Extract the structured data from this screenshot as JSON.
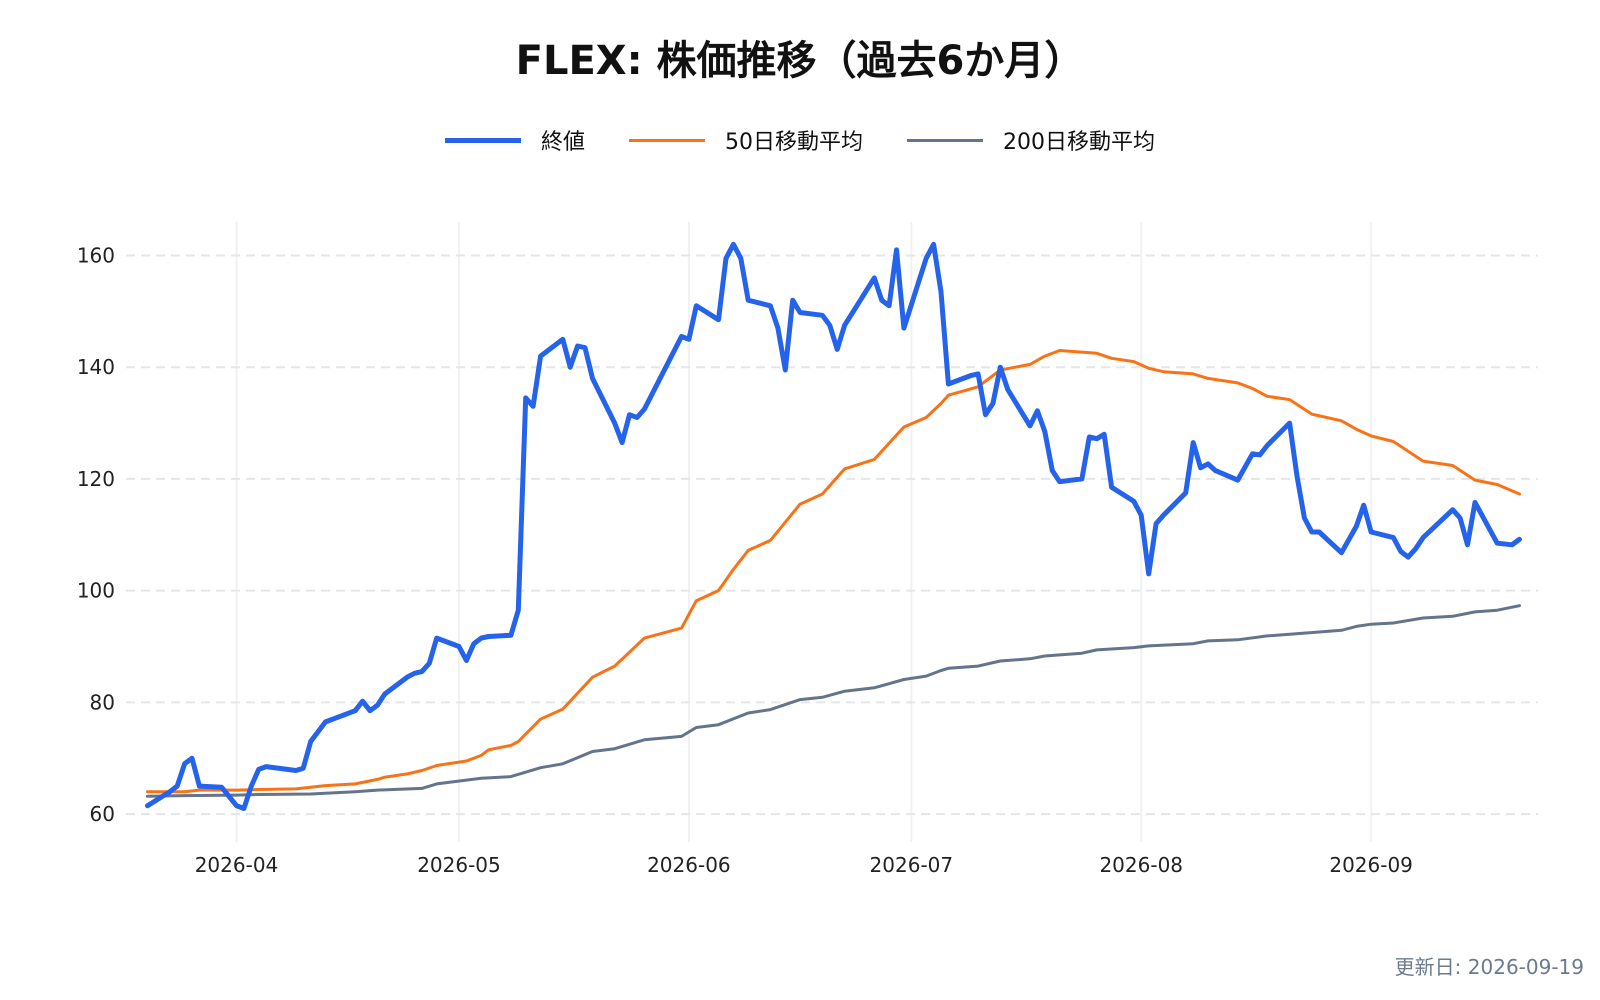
{
  "chart_data": {
    "type": "line",
    "title": "FLEX: 株価推移（過去6か月）",
    "xlabel": "",
    "ylabel": "",
    "ylim": [
      55,
      166
    ],
    "yticks": [
      60,
      80,
      100,
      120,
      140,
      160
    ],
    "xticks": [
      "2026-04",
      "2026-05",
      "2026-06",
      "2026-07",
      "2026-08",
      "2026-09"
    ],
    "x_range": [
      "2026-03-20",
      "2026-09-21"
    ],
    "grid": true,
    "legend_position": "top-center",
    "series": [
      {
        "name": "終値",
        "color": "#2563eb",
        "points": [
          [
            "2026-03-20",
            61.5
          ],
          [
            "2026-03-23",
            64
          ],
          [
            "2026-03-24",
            65
          ],
          [
            "2026-03-25",
            69
          ],
          [
            "2026-03-26",
            70
          ],
          [
            "2026-03-27",
            65
          ],
          [
            "2026-03-30",
            64.8
          ],
          [
            "2026-04-01",
            61.5
          ],
          [
            "2026-04-02",
            61
          ],
          [
            "2026-04-03",
            65
          ],
          [
            "2026-04-04",
            68
          ],
          [
            "2026-04-05",
            68.5
          ],
          [
            "2026-04-09",
            67.8
          ],
          [
            "2026-04-10",
            68.2
          ],
          [
            "2026-04-11",
            73
          ],
          [
            "2026-04-13",
            76.5
          ],
          [
            "2026-04-15",
            77.5
          ],
          [
            "2026-04-17",
            78.5
          ],
          [
            "2026-04-18",
            80.2
          ],
          [
            "2026-04-19",
            78.5
          ],
          [
            "2026-04-20",
            79.5
          ],
          [
            "2026-04-21",
            81.5
          ],
          [
            "2026-04-24",
            84.5
          ],
          [
            "2026-04-25",
            85.2
          ],
          [
            "2026-04-26",
            85.5
          ],
          [
            "2026-04-27",
            87
          ],
          [
            "2026-04-28",
            91.5
          ],
          [
            "2026-05-01",
            90
          ],
          [
            "2026-05-02",
            87.5
          ],
          [
            "2026-05-03",
            90.5
          ],
          [
            "2026-05-04",
            91.5
          ],
          [
            "2026-05-05",
            91.8
          ],
          [
            "2026-05-08",
            92
          ],
          [
            "2026-05-09",
            96.5
          ],
          [
            "2026-05-10",
            134.5
          ],
          [
            "2026-05-11",
            133
          ],
          [
            "2026-05-12",
            142
          ],
          [
            "2026-05-15",
            145
          ],
          [
            "2026-05-16",
            140
          ],
          [
            "2026-05-17",
            143.8
          ],
          [
            "2026-05-18",
            143.5
          ],
          [
            "2026-05-19",
            138
          ],
          [
            "2026-05-22",
            130
          ],
          [
            "2026-05-23",
            126.5
          ],
          [
            "2026-05-24",
            131.5
          ],
          [
            "2026-05-25",
            131
          ],
          [
            "2026-05-26",
            132.5
          ],
          [
            "2026-05-31",
            145.5
          ],
          [
            "2026-06-01",
            145
          ],
          [
            "2026-06-02",
            151
          ],
          [
            "2026-06-05",
            148.5
          ],
          [
            "2026-06-06",
            159.5
          ],
          [
            "2026-06-07",
            162
          ],
          [
            "2026-06-08",
            159.5
          ],
          [
            "2026-06-09",
            152
          ],
          [
            "2026-06-12",
            151
          ],
          [
            "2026-06-13",
            147
          ],
          [
            "2026-06-14",
            139.5
          ],
          [
            "2026-06-15",
            152
          ],
          [
            "2026-06-16",
            149.8
          ],
          [
            "2026-06-19",
            149.3
          ],
          [
            "2026-06-20",
            147.5
          ],
          [
            "2026-06-21",
            143.2
          ],
          [
            "2026-06-22",
            147.5
          ],
          [
            "2026-06-26",
            156
          ],
          [
            "2026-06-27",
            152
          ],
          [
            "2026-06-28",
            151
          ],
          [
            "2026-06-29",
            161
          ],
          [
            "2026-06-30",
            147
          ],
          [
            "2026-07-03",
            159.5
          ],
          [
            "2026-07-04",
            162
          ],
          [
            "2026-07-05",
            153.5
          ],
          [
            "2026-07-06",
            137
          ],
          [
            "2026-07-09",
            138.5
          ],
          [
            "2026-07-10",
            138.8
          ],
          [
            "2026-07-11",
            131.5
          ],
          [
            "2026-07-12",
            133.5
          ],
          [
            "2026-07-13",
            140
          ],
          [
            "2026-07-14",
            136
          ],
          [
            "2026-07-17",
            129.5
          ],
          [
            "2026-07-18",
            132.2
          ],
          [
            "2026-07-19",
            128.5
          ],
          [
            "2026-07-20",
            121.5
          ],
          [
            "2026-07-21",
            119.5
          ],
          [
            "2026-07-24",
            120
          ],
          [
            "2026-07-25",
            127.5
          ],
          [
            "2026-07-26",
            127.2
          ],
          [
            "2026-07-27",
            128
          ],
          [
            "2026-07-28",
            118.5
          ],
          [
            "2026-07-31",
            116
          ],
          [
            "2026-08-01",
            113.5
          ],
          [
            "2026-08-02",
            103
          ],
          [
            "2026-08-03",
            112
          ],
          [
            "2026-08-04",
            113.5
          ],
          [
            "2026-08-07",
            117.5
          ],
          [
            "2026-08-08",
            126.5
          ],
          [
            "2026-08-09",
            122
          ],
          [
            "2026-08-10",
            122.7
          ],
          [
            "2026-08-11",
            121.5
          ],
          [
            "2026-08-14",
            119.8
          ],
          [
            "2026-08-16",
            124.5
          ],
          [
            "2026-08-17",
            124.3
          ],
          [
            "2026-08-18",
            126
          ],
          [
            "2026-08-21",
            130
          ],
          [
            "2026-08-22",
            120.5
          ],
          [
            "2026-08-23",
            113
          ],
          [
            "2026-08-24",
            110.5
          ],
          [
            "2026-08-25",
            110.5
          ],
          [
            "2026-08-28",
            106.8
          ],
          [
            "2026-08-30",
            111.5
          ],
          [
            "2026-08-31",
            115.3
          ],
          [
            "2026-09-01",
            110.5
          ],
          [
            "2026-09-04",
            109.5
          ],
          [
            "2026-09-05",
            107
          ],
          [
            "2026-09-06",
            106
          ],
          [
            "2026-09-07",
            107.5
          ],
          [
            "2026-09-08",
            109.5
          ],
          [
            "2026-09-12",
            114.5
          ],
          [
            "2026-09-13",
            113
          ],
          [
            "2026-09-14",
            108.2
          ],
          [
            "2026-09-15",
            115.8
          ],
          [
            "2026-09-18",
            108.5
          ],
          [
            "2026-09-20",
            108.2
          ],
          [
            "2026-09-21",
            109.2
          ]
        ]
      },
      {
        "name": "50日移動平均",
        "color": "#f97316",
        "points": [
          [
            "2026-03-20",
            64
          ],
          [
            "2026-03-25",
            64
          ],
          [
            "2026-03-27",
            64.3
          ],
          [
            "2026-04-01",
            64.3
          ],
          [
            "2026-04-04",
            64.4
          ],
          [
            "2026-04-09",
            64.5
          ],
          [
            "2026-04-11",
            64.8
          ],
          [
            "2026-04-13",
            65.1
          ],
          [
            "2026-04-17",
            65.4
          ],
          [
            "2026-04-20",
            66.2
          ],
          [
            "2026-04-21",
            66.6
          ],
          [
            "2026-04-24",
            67.2
          ],
          [
            "2026-04-26",
            67.8
          ],
          [
            "2026-04-28",
            68.7
          ],
          [
            "2026-05-02",
            69.5
          ],
          [
            "2026-05-04",
            70.5
          ],
          [
            "2026-05-05",
            71.5
          ],
          [
            "2026-05-08",
            72.3
          ],
          [
            "2026-05-09",
            73
          ],
          [
            "2026-05-12",
            77
          ],
          [
            "2026-05-15",
            78.8
          ],
          [
            "2026-05-19",
            84.5
          ],
          [
            "2026-05-22",
            86.5
          ],
          [
            "2026-05-26",
            91.5
          ],
          [
            "2026-05-31",
            93.3
          ],
          [
            "2026-06-02",
            98.2
          ],
          [
            "2026-06-05",
            100
          ],
          [
            "2026-06-07",
            103.8
          ],
          [
            "2026-06-09",
            107.2
          ],
          [
            "2026-06-12",
            109
          ],
          [
            "2026-06-16",
            115.5
          ],
          [
            "2026-06-19",
            117.3
          ],
          [
            "2026-06-22",
            121.8
          ],
          [
            "2026-06-26",
            123.5
          ],
          [
            "2026-06-30",
            129.3
          ],
          [
            "2026-07-03",
            131
          ],
          [
            "2026-07-05",
            133.5
          ],
          [
            "2026-07-06",
            135
          ],
          [
            "2026-07-10",
            136.5
          ],
          [
            "2026-07-13",
            139.5
          ],
          [
            "2026-07-17",
            140.5
          ],
          [
            "2026-07-19",
            142
          ],
          [
            "2026-07-21",
            143
          ],
          [
            "2026-07-26",
            142.5
          ],
          [
            "2026-07-28",
            141.6
          ],
          [
            "2026-07-31",
            141
          ],
          [
            "2026-08-02",
            139.8
          ],
          [
            "2026-08-04",
            139.2
          ],
          [
            "2026-08-08",
            138.8
          ],
          [
            "2026-08-10",
            138
          ],
          [
            "2026-08-14",
            137.2
          ],
          [
            "2026-08-16",
            136.2
          ],
          [
            "2026-08-18",
            134.8
          ],
          [
            "2026-08-21",
            134.2
          ],
          [
            "2026-08-24",
            131.6
          ],
          [
            "2026-08-28",
            130.4
          ],
          [
            "2026-08-30",
            128.9
          ],
          [
            "2026-09-01",
            127.7
          ],
          [
            "2026-09-04",
            126.7
          ],
          [
            "2026-09-08",
            123.2
          ],
          [
            "2026-09-12",
            122.4
          ],
          [
            "2026-09-15",
            119.8
          ],
          [
            "2026-09-18",
            119
          ],
          [
            "2026-09-21",
            117.3
          ]
        ]
      },
      {
        "name": "200日移動平均",
        "color": "#64748b",
        "points": [
          [
            "2026-03-20",
            63.2
          ],
          [
            "2026-03-25",
            63.3
          ],
          [
            "2026-04-01",
            63.4
          ],
          [
            "2026-04-04",
            63.5
          ],
          [
            "2026-04-11",
            63.6
          ],
          [
            "2026-04-17",
            64
          ],
          [
            "2026-04-20",
            64.3
          ],
          [
            "2026-04-26",
            64.6
          ],
          [
            "2026-04-28",
            65.4
          ],
          [
            "2026-05-04",
            66.4
          ],
          [
            "2026-05-08",
            66.7
          ],
          [
            "2026-05-12",
            68.3
          ],
          [
            "2026-05-15",
            69
          ],
          [
            "2026-05-19",
            71.2
          ],
          [
            "2026-05-22",
            71.7
          ],
          [
            "2026-05-26",
            73.3
          ],
          [
            "2026-05-31",
            73.9
          ],
          [
            "2026-06-02",
            75.5
          ],
          [
            "2026-06-05",
            76
          ],
          [
            "2026-06-09",
            78.1
          ],
          [
            "2026-06-12",
            78.7
          ],
          [
            "2026-06-16",
            80.5
          ],
          [
            "2026-06-19",
            80.9
          ],
          [
            "2026-06-22",
            82
          ],
          [
            "2026-06-26",
            82.6
          ],
          [
            "2026-06-30",
            84.1
          ],
          [
            "2026-07-03",
            84.7
          ],
          [
            "2026-07-05",
            85.7
          ],
          [
            "2026-07-06",
            86.1
          ],
          [
            "2026-07-10",
            86.5
          ],
          [
            "2026-07-13",
            87.4
          ],
          [
            "2026-07-17",
            87.8
          ],
          [
            "2026-07-19",
            88.3
          ],
          [
            "2026-07-24",
            88.8
          ],
          [
            "2026-07-26",
            89.4
          ],
          [
            "2026-07-31",
            89.8
          ],
          [
            "2026-08-02",
            90.1
          ],
          [
            "2026-08-08",
            90.5
          ],
          [
            "2026-08-10",
            91
          ],
          [
            "2026-08-14",
            91.2
          ],
          [
            "2026-08-18",
            91.9
          ],
          [
            "2026-08-21",
            92.2
          ],
          [
            "2026-08-25",
            92.6
          ],
          [
            "2026-08-28",
            92.9
          ],
          [
            "2026-08-30",
            93.6
          ],
          [
            "2026-09-01",
            94
          ],
          [
            "2026-09-04",
            94.2
          ],
          [
            "2026-09-08",
            95.1
          ],
          [
            "2026-09-12",
            95.4
          ],
          [
            "2026-09-15",
            96.2
          ],
          [
            "2026-09-18",
            96.5
          ],
          [
            "2026-09-21",
            97.3
          ]
        ]
      }
    ]
  },
  "updated": "更新日: 2026-09-19"
}
